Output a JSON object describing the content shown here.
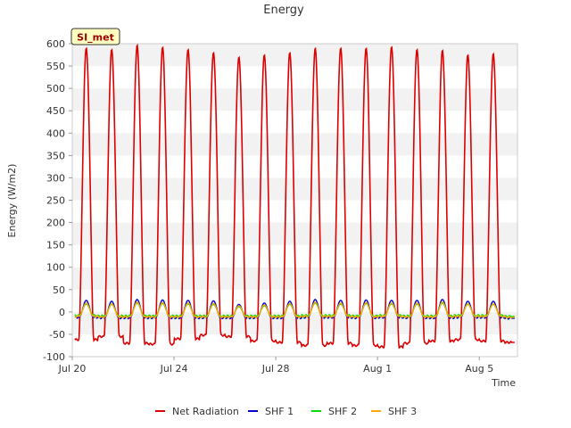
{
  "chart_data": {
    "type": "line",
    "title": "Energy",
    "xlabel": "Time",
    "ylabel": "Energy (W/m2)",
    "ylim": [
      -100,
      600
    ],
    "yticks": [
      -100,
      -50,
      0,
      50,
      100,
      150,
      200,
      250,
      300,
      350,
      400,
      450,
      500,
      550,
      600
    ],
    "xlim": [
      "2023-07-20",
      "2023-08-06T12:00"
    ],
    "xtick_labels": [
      "Jul 20",
      "Jul 24",
      "Jul 28",
      "Aug 1",
      "Aug 5"
    ],
    "xtick_dates": [
      "2023-07-20",
      "2023-07-24",
      "2023-07-28",
      "2023-08-01",
      "2023-08-05"
    ],
    "badge": "SI_met",
    "grid": "horizontal bands",
    "legend_position": "bottom",
    "series": [
      {
        "name": "Net Radiation",
        "color": "#dd0000",
        "days": [
          "2023-07-20",
          "2023-07-21",
          "2023-07-22",
          "2023-07-23",
          "2023-07-24",
          "2023-07-25",
          "2023-07-26",
          "2023-07-27",
          "2023-07-28",
          "2023-07-29",
          "2023-07-30",
          "2023-07-31",
          "2023-08-01",
          "2023-08-02",
          "2023-08-03",
          "2023-08-04",
          "2023-08-05",
          "2023-08-06"
        ],
        "daily_peak": [
          590,
          587,
          597,
          592,
          587,
          580,
          570,
          575,
          580,
          590,
          590,
          590,
          593,
          587,
          585,
          575,
          578,
          null
        ],
        "nightly_min": [
          -62,
          -55,
          -70,
          -72,
          -60,
          -52,
          -55,
          -65,
          -68,
          -75,
          -70,
          -75,
          -78,
          -70,
          -65,
          -62,
          -65,
          -68
        ]
      },
      {
        "name": "SHF 1",
        "color": "#0000cc",
        "days": [
          "2023-07-20",
          "2023-07-21",
          "2023-07-22",
          "2023-07-23",
          "2023-07-24",
          "2023-07-25",
          "2023-07-26",
          "2023-07-27",
          "2023-07-28",
          "2023-07-29",
          "2023-07-30",
          "2023-07-31",
          "2023-08-01",
          "2023-08-02",
          "2023-08-03",
          "2023-08-04",
          "2023-08-05",
          "2023-08-06"
        ],
        "daily_peak": [
          26,
          24,
          28,
          27,
          26,
          25,
          17,
          20,
          24,
          28,
          26,
          27,
          26,
          26,
          28,
          24,
          24,
          null
        ],
        "nightly_min": [
          -12,
          -13,
          -13,
          -13,
          -13,
          -13,
          -13,
          -13,
          -13,
          -12,
          -12,
          -13,
          -12,
          -13,
          -13,
          -12,
          -12,
          -14
        ]
      },
      {
        "name": "SHF 2",
        "color": "#00dd00",
        "days": [
          "2023-07-20",
          "2023-07-21",
          "2023-07-22",
          "2023-07-23",
          "2023-07-24",
          "2023-07-25",
          "2023-07-26",
          "2023-07-27",
          "2023-07-28",
          "2023-07-29",
          "2023-07-30",
          "2023-07-31",
          "2023-08-01",
          "2023-08-02",
          "2023-08-03",
          "2023-08-04",
          "2023-08-05",
          "2023-08-06"
        ],
        "daily_peak": [
          18,
          17,
          20,
          19,
          18,
          17,
          12,
          14,
          17,
          20,
          18,
          19,
          18,
          18,
          20,
          17,
          17,
          null
        ],
        "nightly_min": [
          -8,
          -9,
          -9,
          -9,
          -9,
          -9,
          -9,
          -9,
          -9,
          -8,
          -8,
          -9,
          -8,
          -9,
          -9,
          -8,
          -8,
          -10
        ]
      },
      {
        "name": "SHF 3",
        "color": "#ffaa00",
        "days": [
          "2023-07-20",
          "2023-07-21",
          "2023-07-22",
          "2023-07-23",
          "2023-07-24",
          "2023-07-25",
          "2023-07-26",
          "2023-07-27",
          "2023-07-28",
          "2023-07-29",
          "2023-07-30",
          "2023-07-31",
          "2023-08-01",
          "2023-08-02",
          "2023-08-03",
          "2023-08-04",
          "2023-08-05",
          "2023-08-06"
        ],
        "daily_peak": [
          20,
          18,
          22,
          21,
          20,
          19,
          14,
          16,
          19,
          22,
          20,
          21,
          20,
          20,
          22,
          18,
          18,
          null
        ],
        "nightly_min": [
          -10,
          -11,
          -11,
          -11,
          -11,
          -11,
          -11,
          -11,
          -11,
          -10,
          -10,
          -11,
          -10,
          -11,
          -11,
          -10,
          -10,
          -12
        ]
      }
    ]
  }
}
